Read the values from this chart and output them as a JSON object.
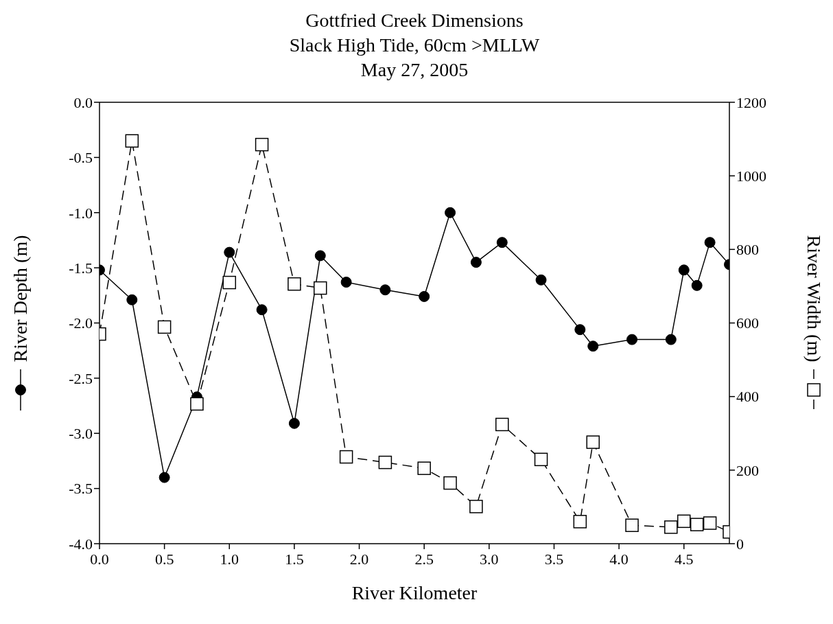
{
  "chart_data": {
    "type": "line",
    "title": "Gottfried Creek Dimensions",
    "subtitle": "Slack High Tide, 60cm >MLLW\nMay 27, 2005",
    "xlabel": "River Kilometer",
    "ylabel": "River Depth (m)",
    "y2label": "River Width (m)",
    "x": [
      0,
      0.25,
      0.5,
      0.75,
      1.0,
      1.25,
      1.5,
      1.7,
      1.9,
      2.2,
      2.5,
      2.7,
      2.9,
      3.1,
      3.4,
      3.7,
      3.8,
      4.1,
      4.4,
      4.5,
      4.6,
      4.7,
      4.85
    ],
    "series": [
      {
        "color": "#000000",
        "marker": "circle",
        "line_style": "solid",
        "values": [
          -1.52,
          -1.79,
          -3.4,
          -2.67,
          -1.36,
          -1.88,
          -2.91,
          -1.39,
          -1.63,
          -1.7,
          -1.76,
          -1.0,
          -1.45,
          -1.27,
          -1.61,
          -2.06,
          -2.21,
          -2.15,
          -2.15,
          -1.52,
          -1.66,
          -1.27,
          -1.47
        ]
      },
      {
        "color": "#000000",
        "marker": "square",
        "line_style": "dashed",
        "axis": "y2",
        "values": [
          570,
          1095,
          589,
          380,
          710,
          1085,
          706,
          695,
          236,
          221,
          205,
          165,
          101,
          324,
          229,
          60,
          276,
          50,
          45,
          61,
          52,
          56,
          32
        ]
      }
    ],
    "xlim": [
      0,
      4.85
    ],
    "xticks": [
      {
        "value": 0,
        "label": "0.0"
      },
      {
        "value": 0.5,
        "label": "0.5"
      },
      {
        "value": 1,
        "label": "1.0"
      },
      {
        "value": 1.5,
        "label": "1.5"
      },
      {
        "value": 2,
        "label": "2.0"
      },
      {
        "value": 2.5,
        "label": "2.5"
      },
      {
        "value": 3,
        "label": "3.0"
      },
      {
        "value": 3.5,
        "label": "3.5"
      },
      {
        "value": 4,
        "label": "4.0"
      },
      {
        "value": 4.5,
        "label": "4.5"
      }
    ],
    "ylim": [
      -4,
      0
    ],
    "yticks": [
      {
        "value": -4,
        "label": "-4.0"
      },
      {
        "value": -3.5,
        "label": "-3.5"
      },
      {
        "value": -3,
        "label": "-3.0"
      },
      {
        "value": -2.5,
        "label": "-2.5"
      },
      {
        "value": -2,
        "label": "-2.0"
      },
      {
        "value": -1.5,
        "label": "-1.5"
      },
      {
        "value": -1,
        "label": "-1.0"
      },
      {
        "value": -0.5,
        "label": "-0.5"
      },
      {
        "value": 0,
        "label": "0.0"
      }
    ],
    "y2lim": [
      0,
      1200
    ],
    "y2ticks": [
      0,
      200,
      400,
      600,
      800,
      1000,
      1200
    ],
    "grid": false
  }
}
